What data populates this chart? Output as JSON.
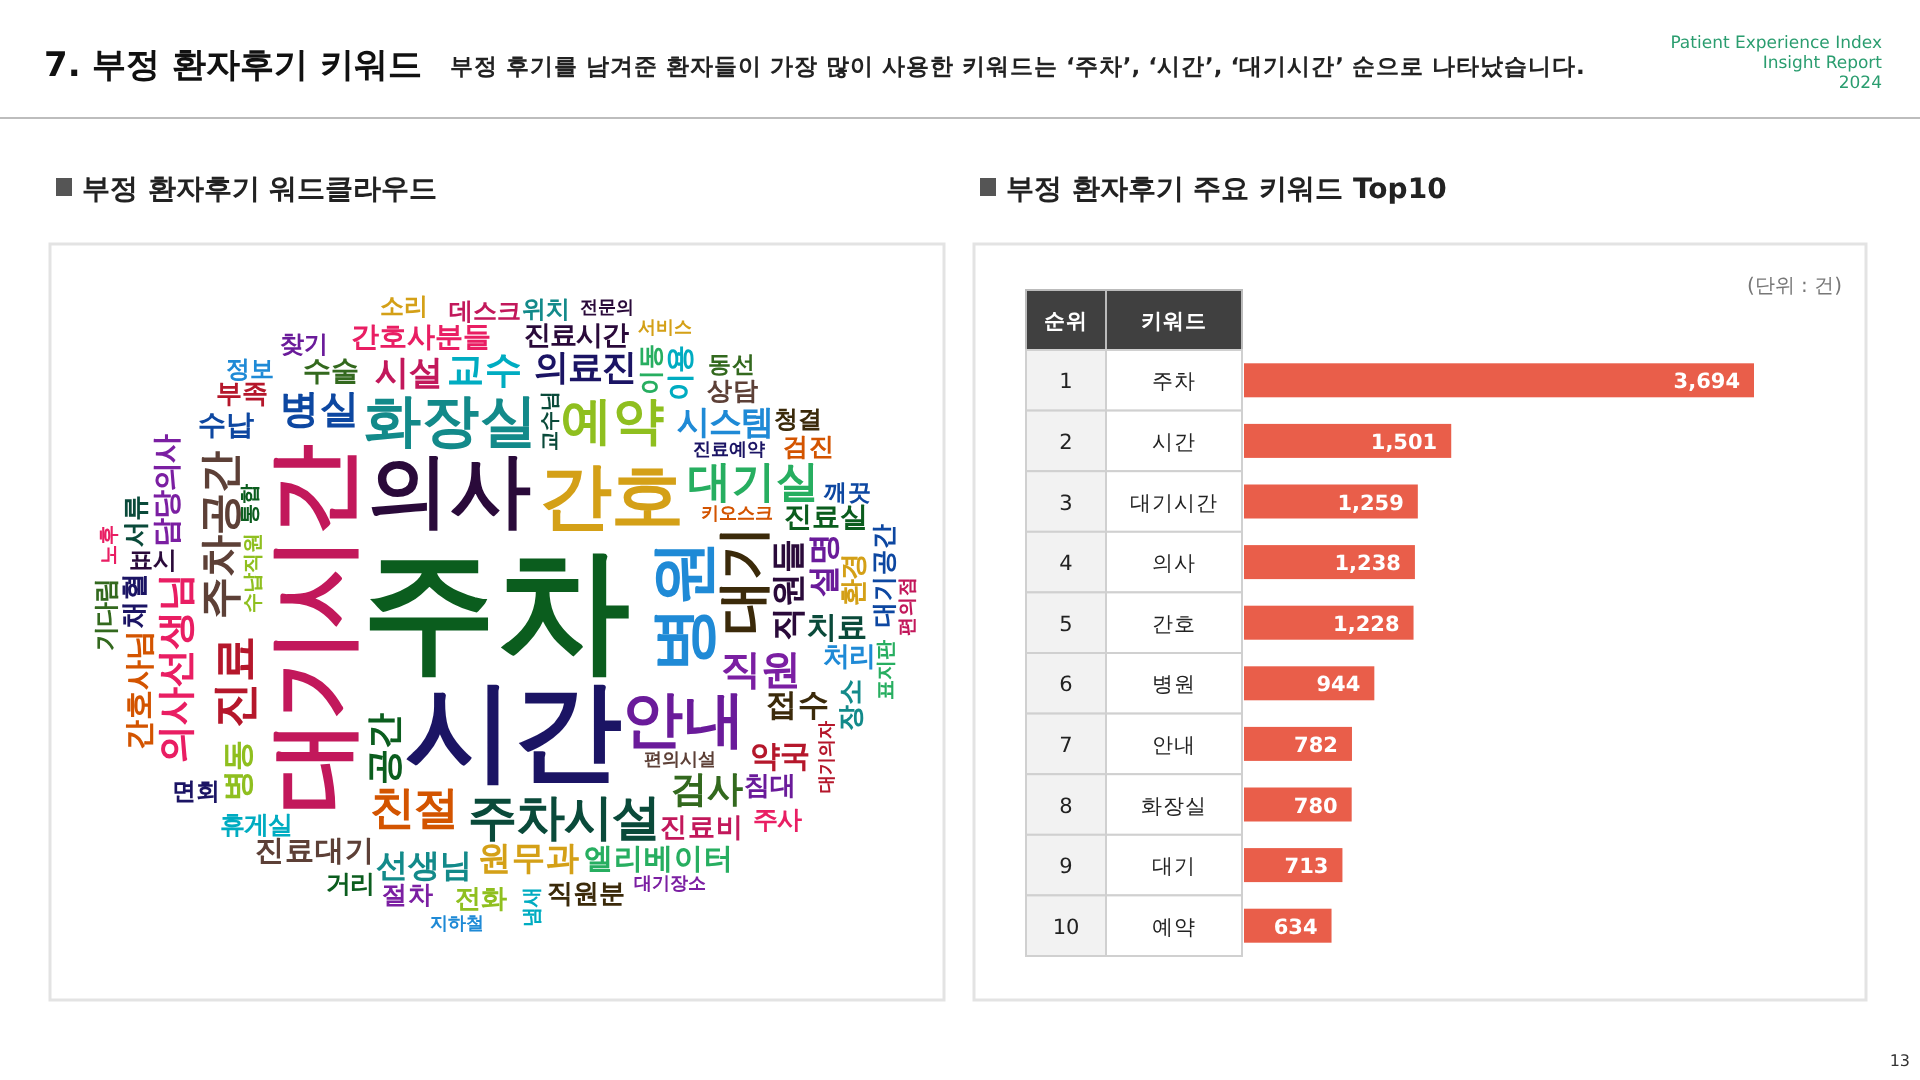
{
  "chart_data": [
    {
      "type": "other",
      "title": "7. 부정 환자후기 키워드",
      "subtitle": "부정 후기를 남겨준 환자들이 가장 많이 사용한 키워드는 ‘주차’, ‘시간’, ‘대기시간’ 순으로 나타났습니다.",
      "annotations": [
        "Patient Experience Index",
        "Insight Report",
        "2024",
        "13"
      ]
    },
    {
      "type": "other",
      "title": "부정 환자후기 워드클라우드",
      "annotations": [
        "주차",
        "시간",
        "대기시간",
        "의사",
        "간호",
        "병원",
        "안내",
        "화장실",
        "대기",
        "예약",
        "주차시설",
        "진료",
        "친절",
        "대기실",
        "주차공간",
        "직원",
        "병실",
        "의사선생님",
        "교수",
        "검사",
        "공간",
        "의료진",
        "시설",
        "직원들",
        "원무과",
        "시스템",
        "설명",
        "선생님",
        "접수",
        "병동",
        "치료",
        "약국",
        "간호사님",
        "엘리베이터",
        "진료대기",
        "담당의사",
        "수납",
        "간호사분들",
        "이용",
        "수술",
        "진료실",
        "채혈",
        "진료비",
        "진료시간",
        "환경",
        "처리",
        "침대",
        "장소",
        "직원분",
        "전화",
        "서류",
        "부족",
        "검진",
        "이동",
        "상담",
        "절차",
        "대기공간",
        "주사",
        "휴게실",
        "기다림",
        "거리",
        "면회",
        "데스크",
        "표시",
        "소리",
        "정보",
        "찾기",
        "위치",
        "청결",
        "수납직원",
        "교수님",
        "대기의자",
        "키오스크",
        "표지판",
        "편의시설",
        "대기장소",
        "깨끗",
        "노후",
        "냄새",
        "동선",
        "통합",
        "진료예약",
        "편의점",
        "전문의",
        "서비스",
        "지하철"
      ]
    },
    {
      "type": "bar",
      "orientation": "horizontal",
      "title": "부정 환자후기 주요 키워드 Top10",
      "categories": [
        "주차",
        "시간",
        "대기시간",
        "의사",
        "간호",
        "병원",
        "안내",
        "화장실",
        "대기",
        "예약"
      ],
      "values": [
        3694,
        1501,
        1259,
        1238,
        1228,
        944,
        782,
        780,
        713,
        634
      ],
      "value_labels": [
        "3,694",
        "1,501",
        "1,259",
        "1,238",
        "1,228",
        "944",
        "782",
        "780",
        "713",
        "634"
      ],
      "color": "#e95e4a",
      "annotations": [
        "(단위 : 건)",
        "순위",
        "키워드",
        "1",
        "2",
        "3",
        "4",
        "5",
        "6",
        "7",
        "8",
        "9",
        "10"
      ]
    }
  ]
}
